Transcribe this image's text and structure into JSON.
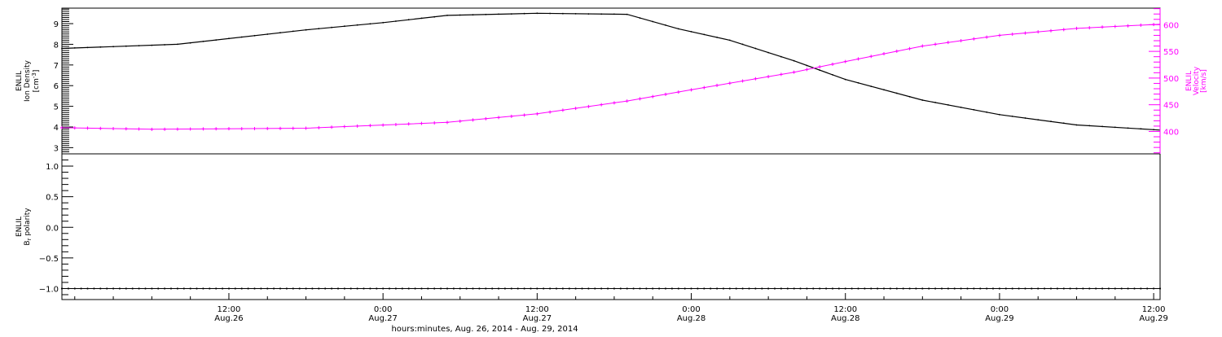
{
  "figure": {
    "x_axis_title": "hours:minutes, Aug. 26, 2014 - Aug. 29, 2014"
  },
  "chart_data": [
    {
      "type": "line",
      "panel": "top",
      "xlim": [
        "2014-08-25T23:00",
        "2014-08-29T12:30"
      ],
      "x_ticks": [
        {
          "t": "2014-08-26T12:00",
          "time": "12:00",
          "date": "Aug.26"
        },
        {
          "t": "2014-08-27T00:00",
          "time": "0:00",
          "date": "Aug.27"
        },
        {
          "t": "2014-08-27T12:00",
          "time": "12:00",
          "date": "Aug.27"
        },
        {
          "t": "2014-08-28T00:00",
          "time": "0:00",
          "date": "Aug.28"
        },
        {
          "t": "2014-08-28T12:00",
          "time": "12:00",
          "date": "Aug.28"
        },
        {
          "t": "2014-08-29T00:00",
          "time": "0:00",
          "date": "Aug.29"
        },
        {
          "t": "2014-08-29T12:00",
          "time": "12:00",
          "date": "Aug.29"
        }
      ],
      "y_left": {
        "label_lines": [
          "ENLIL",
          "Ion Density"
        ],
        "unit": "[cm",
        "unit_exp": "-3",
        "unit_end": "]",
        "ylim": [
          2.7,
          9.75
        ],
        "ticks": [
          3,
          4,
          5,
          6,
          7,
          8,
          9
        ],
        "color": "#000000"
      },
      "y_right": {
        "label_lines": [
          "ENLIL",
          "Velocity",
          "[km/s]"
        ],
        "ylim": [
          358,
          631
        ],
        "ticks": [
          400,
          450,
          500,
          550,
          600
        ],
        "color": "#ff00ff"
      },
      "series": [
        {
          "axis": "left",
          "color": "#000000",
          "marker": "line",
          "x": [
            "2014-08-25T23:00",
            "2014-08-26T08:00",
            "2014-08-26T18:00",
            "2014-08-27T00:00",
            "2014-08-27T05:00",
            "2014-08-27T12:00",
            "2014-08-27T19:00",
            "2014-08-27T23:00",
            "2014-08-28T03:00",
            "2014-08-28T08:00",
            "2014-08-28T12:00",
            "2014-08-28T18:00",
            "2014-08-29T00:00",
            "2014-08-29T06:00",
            "2014-08-29T12:30"
          ],
          "values": [
            7.8,
            8.0,
            8.7,
            9.05,
            9.4,
            9.5,
            9.45,
            8.75,
            8.2,
            7.2,
            6.3,
            5.3,
            4.6,
            4.1,
            3.85
          ]
        },
        {
          "axis": "right",
          "color": "#ff00ff",
          "marker": "cross",
          "x": [
            "2014-08-25T23:00",
            "2014-08-26T06:00",
            "2014-08-26T18:00",
            "2014-08-27T05:00",
            "2014-08-27T12:00",
            "2014-08-27T19:00",
            "2014-08-28T00:00",
            "2014-08-28T08:00",
            "2014-08-28T12:00",
            "2014-08-28T18:00",
            "2014-08-29T00:00",
            "2014-08-29T06:00",
            "2014-08-29T12:30"
          ],
          "values": [
            407,
            404,
            406,
            417,
            433,
            457,
            478,
            511,
            531,
            560,
            580,
            593,
            601
          ]
        }
      ]
    },
    {
      "type": "scatter",
      "panel": "bottom",
      "xlim": [
        "2014-08-25T23:00",
        "2014-08-29T12:30"
      ],
      "y": {
        "label_lines": [
          "ENLIL"
        ],
        "label_b": "B",
        "label_sub": "r",
        "label_rest": " polarity",
        "ylim": [
          -1.18,
          1.2
        ],
        "ticks": [
          -1.0,
          -0.5,
          0.0,
          0.5,
          1.0
        ],
        "tick_labels": [
          "−1.0",
          "−0.5",
          "0.0",
          "0.5",
          "1.0"
        ]
      },
      "series": [
        {
          "color": "#000000",
          "marker": "dot",
          "x_start": "2014-08-25T23:00",
          "x_end": "2014-08-29T12:30",
          "step_hours": 0.5,
          "value": -1.0
        }
      ]
    }
  ]
}
